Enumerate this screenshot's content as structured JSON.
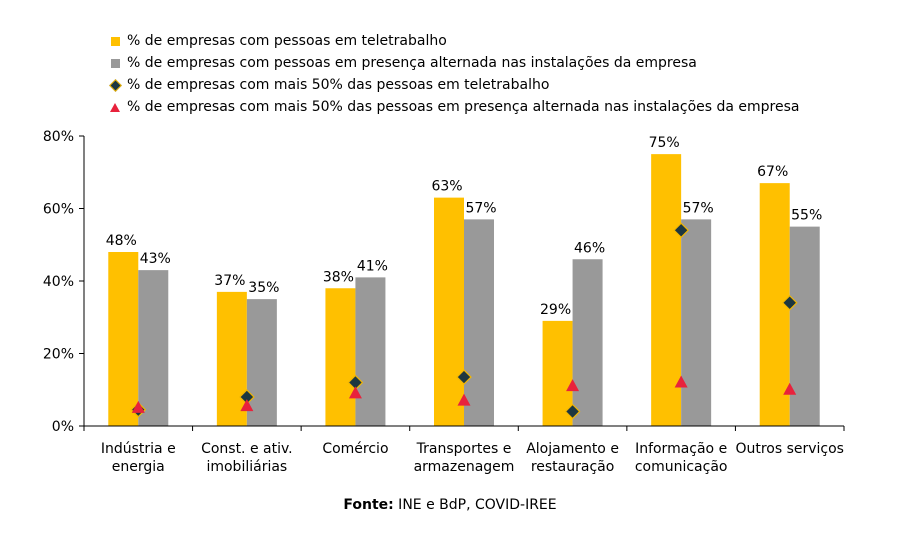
{
  "chart_data": {
    "type": "bar",
    "categories": [
      [
        "Indústria e",
        "energia"
      ],
      [
        "Const. e ativ.",
        "imobiliárias"
      ],
      [
        "Comércio"
      ],
      [
        "Transportes e",
        "armazenagem"
      ],
      [
        "Alojamento e",
        "restauração"
      ],
      [
        "Informação e",
        "comunicação"
      ],
      [
        "Outros serviços"
      ]
    ],
    "series": [
      {
        "name": "% de empresas com pessoas em teletrabalho",
        "kind": "bar",
        "color": "#ffc000",
        "values": [
          48,
          37,
          38,
          63,
          29,
          75,
          67
        ],
        "labels": [
          "48%",
          "37%",
          "38%",
          "63%",
          "29%",
          "75%",
          "67%"
        ]
      },
      {
        "name": "% de empresas com pessoas em presença alternada nas instalações da empresa",
        "kind": "bar",
        "color": "#999999",
        "values": [
          43,
          35,
          41,
          57,
          46,
          57,
          55
        ],
        "labels": [
          "43%",
          "35%",
          "41%",
          "57%",
          "46%",
          "57%",
          "55%"
        ]
      },
      {
        "name": "% de empresas com mais 50% das pessoas em teletrabalho",
        "kind": "diamond",
        "color": "#1d3740",
        "values": [
          4.5,
          8,
          12,
          13.5,
          4,
          54,
          34
        ]
      },
      {
        "name": "% de empresas com mais 50% das pessoas em presença alternada nas instalações da empresa",
        "kind": "triangle",
        "color": "#e8223c",
        "values": [
          5,
          5.5,
          9,
          7,
          11,
          12,
          10
        ]
      }
    ],
    "yticks": [
      "0%",
      "20%",
      "40%",
      "60%",
      "80%"
    ],
    "ylim": [
      0,
      80
    ],
    "legend_position": "top-left"
  },
  "source": {
    "label": "Fonte:",
    "text": " INE e BdP, COVID-IREE"
  }
}
